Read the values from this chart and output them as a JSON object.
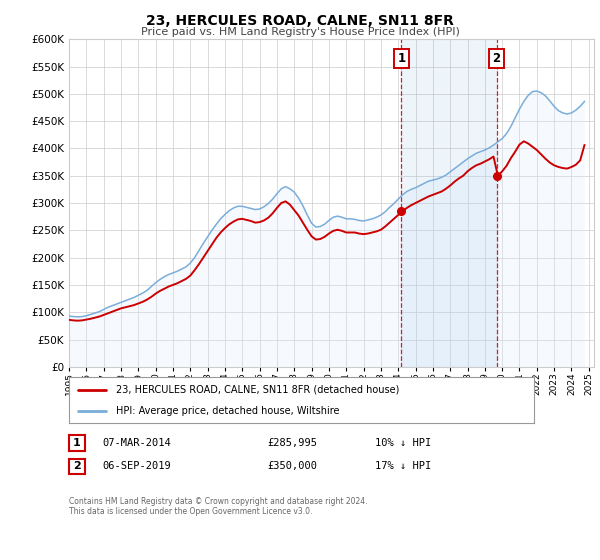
{
  "title": "23, HERCULES ROAD, CALNE, SN11 8FR",
  "subtitle": "Price paid vs. HM Land Registry's House Price Index (HPI)",
  "ylim": [
    0,
    600000
  ],
  "yticks": [
    0,
    50000,
    100000,
    150000,
    200000,
    250000,
    300000,
    350000,
    400000,
    450000,
    500000,
    550000,
    600000
  ],
  "xlim_start": 1995.0,
  "xlim_end": 2025.3,
  "red_color": "#cc0000",
  "blue_color": "#7aadda",
  "blue_fill_color": "#ddeeff",
  "grid_color": "#cccccc",
  "bg_color": "#ffffff",
  "transaction1_date": 2014.18,
  "transaction1_value": 285995,
  "transaction2_date": 2019.68,
  "transaction2_value": 350000,
  "legend_red_label": "23, HERCULES ROAD, CALNE, SN11 8FR (detached house)",
  "legend_blue_label": "HPI: Average price, detached house, Wiltshire",
  "table_row1": [
    "1",
    "07-MAR-2014",
    "£285,995",
    "10% ↓ HPI"
  ],
  "table_row2": [
    "2",
    "06-SEP-2019",
    "£350,000",
    "17% ↓ HPI"
  ],
  "footer1": "Contains HM Land Registry data © Crown copyright and database right 2024.",
  "footer2": "This data is licensed under the Open Government Licence v3.0.",
  "hpi_years": [
    1995.0,
    1995.25,
    1995.5,
    1995.75,
    1996.0,
    1996.25,
    1996.5,
    1996.75,
    1997.0,
    1997.25,
    1997.5,
    1997.75,
    1998.0,
    1998.25,
    1998.5,
    1998.75,
    1999.0,
    1999.25,
    1999.5,
    1999.75,
    2000.0,
    2000.25,
    2000.5,
    2000.75,
    2001.0,
    2001.25,
    2001.5,
    2001.75,
    2002.0,
    2002.25,
    2002.5,
    2002.75,
    2003.0,
    2003.25,
    2003.5,
    2003.75,
    2004.0,
    2004.25,
    2004.5,
    2004.75,
    2005.0,
    2005.25,
    2005.5,
    2005.75,
    2006.0,
    2006.25,
    2006.5,
    2006.75,
    2007.0,
    2007.25,
    2007.5,
    2007.75,
    2008.0,
    2008.25,
    2008.5,
    2008.75,
    2009.0,
    2009.25,
    2009.5,
    2009.75,
    2010.0,
    2010.25,
    2010.5,
    2010.75,
    2011.0,
    2011.25,
    2011.5,
    2011.75,
    2012.0,
    2012.25,
    2012.5,
    2012.75,
    2013.0,
    2013.25,
    2013.5,
    2013.75,
    2014.0,
    2014.25,
    2014.5,
    2014.75,
    2015.0,
    2015.25,
    2015.5,
    2015.75,
    2016.0,
    2016.25,
    2016.5,
    2016.75,
    2017.0,
    2017.25,
    2017.5,
    2017.75,
    2018.0,
    2018.25,
    2018.5,
    2018.75,
    2019.0,
    2019.25,
    2019.5,
    2019.75,
    2020.0,
    2020.25,
    2020.5,
    2020.75,
    2021.0,
    2021.25,
    2021.5,
    2021.75,
    2022.0,
    2022.25,
    2022.5,
    2022.75,
    2023.0,
    2023.25,
    2023.5,
    2023.75,
    2024.0,
    2024.25,
    2024.5,
    2024.75
  ],
  "hpi_values": [
    93000,
    92000,
    91500,
    92000,
    93500,
    96000,
    98500,
    101000,
    105000,
    109000,
    112000,
    115000,
    118000,
    121000,
    124000,
    127000,
    131000,
    135000,
    140000,
    147000,
    154000,
    160000,
    165000,
    169000,
    172000,
    175000,
    179000,
    183000,
    190000,
    200000,
    213000,
    226000,
    238000,
    250000,
    261000,
    271000,
    279000,
    286000,
    291000,
    294000,
    294000,
    292000,
    290000,
    288000,
    289000,
    293000,
    299000,
    307000,
    317000,
    326000,
    330000,
    326000,
    320000,
    309000,
    295000,
    278000,
    263000,
    256000,
    257000,
    261000,
    268000,
    274000,
    276000,
    274000,
    271000,
    271000,
    270000,
    268000,
    267000,
    269000,
    271000,
    274000,
    278000,
    284000,
    292000,
    299000,
    307000,
    315000,
    321000,
    325000,
    328000,
    332000,
    336000,
    340000,
    342000,
    344000,
    347000,
    351000,
    357000,
    363000,
    369000,
    375000,
    381000,
    386000,
    391000,
    394000,
    397000,
    401000,
    406000,
    412000,
    418000,
    427000,
    440000,
    456000,
    472000,
    486000,
    497000,
    504000,
    505000,
    502000,
    496000,
    487000,
    477000,
    469000,
    465000,
    463000,
    465000,
    470000,
    477000,
    486000
  ],
  "red_years": [
    1995.0,
    1995.25,
    1995.5,
    1995.75,
    1996.0,
    1996.25,
    1996.5,
    1996.75,
    1997.0,
    1997.25,
    1997.5,
    1997.75,
    1998.0,
    1998.25,
    1998.5,
    1998.75,
    1999.0,
    1999.25,
    1999.5,
    1999.75,
    2000.0,
    2000.25,
    2000.5,
    2000.75,
    2001.0,
    2001.25,
    2001.5,
    2001.75,
    2002.0,
    2002.25,
    2002.5,
    2002.75,
    2003.0,
    2003.25,
    2003.5,
    2003.75,
    2004.0,
    2004.25,
    2004.5,
    2004.75,
    2005.0,
    2005.25,
    2005.5,
    2005.75,
    2006.0,
    2006.25,
    2006.5,
    2006.75,
    2007.0,
    2007.25,
    2007.5,
    2007.75,
    2008.0,
    2008.25,
    2008.5,
    2008.75,
    2009.0,
    2009.25,
    2009.5,
    2009.75,
    2010.0,
    2010.25,
    2010.5,
    2010.75,
    2011.0,
    2011.25,
    2011.5,
    2011.75,
    2012.0,
    2012.25,
    2012.5,
    2012.75,
    2013.0,
    2013.25,
    2013.5,
    2013.75,
    2014.0,
    2014.25,
    2014.5,
    2014.75,
    2015.0,
    2015.25,
    2015.5,
    2015.75,
    2016.0,
    2016.25,
    2016.5,
    2016.75,
    2017.0,
    2017.25,
    2017.5,
    2017.75,
    2018.0,
    2018.25,
    2018.5,
    2018.75,
    2019.0,
    2019.25,
    2019.5,
    2019.75,
    2020.0,
    2020.25,
    2020.5,
    2020.75,
    2021.0,
    2021.25,
    2021.5,
    2021.75,
    2022.0,
    2022.25,
    2022.5,
    2022.75,
    2023.0,
    2023.25,
    2023.5,
    2023.75,
    2024.0,
    2024.25,
    2024.5,
    2024.75
  ],
  "red_values": [
    86000,
    85000,
    84500,
    85000,
    86500,
    88000,
    90000,
    92000,
    95000,
    98000,
    101000,
    104000,
    107000,
    109000,
    111000,
    113000,
    116000,
    119000,
    123000,
    128000,
    134000,
    139000,
    143000,
    147000,
    150000,
    153000,
    157000,
    161000,
    167000,
    177000,
    188000,
    200000,
    212000,
    224000,
    236000,
    246000,
    254000,
    261000,
    266000,
    270000,
    271000,
    269000,
    267000,
    264000,
    265000,
    268000,
    273000,
    281000,
    291000,
    300000,
    303000,
    297000,
    287000,
    277000,
    264000,
    251000,
    239000,
    233000,
    234000,
    238000,
    244000,
    249000,
    251000,
    249000,
    246000,
    246000,
    246000,
    244000,
    243000,
    244000,
    246000,
    248000,
    251000,
    257000,
    264000,
    271000,
    278000,
    285000,
    291000,
    296000,
    300000,
    304000,
    308000,
    312000,
    315000,
    318000,
    321000,
    326000,
    332000,
    339000,
    345000,
    350000,
    358000,
    364000,
    369000,
    372000,
    376000,
    380000,
    385000,
    350000,
    358000,
    368000,
    382000,
    394000,
    407000,
    413000,
    409000,
    403000,
    397000,
    389000,
    381000,
    374000,
    369000,
    366000,
    364000,
    363000,
    366000,
    370000,
    378000,
    406000
  ]
}
